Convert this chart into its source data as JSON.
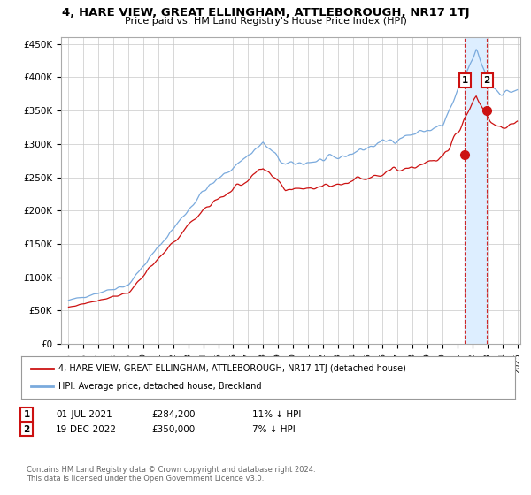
{
  "title": "4, HARE VIEW, GREAT ELLINGHAM, ATTLEBOROUGH, NR17 1TJ",
  "subtitle": "Price paid vs. HM Land Registry's House Price Index (HPI)",
  "legend_line1": "4, HARE VIEW, GREAT ELLINGHAM, ATTLEBOROUGH, NR17 1TJ (detached house)",
  "legend_line2": "HPI: Average price, detached house, Breckland",
  "footer": "Contains HM Land Registry data © Crown copyright and database right 2024.\nThis data is licensed under the Open Government Licence v3.0.",
  "hpi_color": "#7aaadd",
  "price_color": "#cc1111",
  "shade_color": "#ddeeff",
  "sale1": {
    "label": "1",
    "date": "01-JUL-2021",
    "price": 284200,
    "note": "11% ↓ HPI",
    "x_year": 2021.5
  },
  "sale2": {
    "label": "2",
    "date": "19-DEC-2022",
    "price": 350000,
    "note": "7% ↓ HPI",
    "x_year": 2022.96
  },
  "xlim": [
    1994.5,
    2025.2
  ],
  "ylim": [
    0,
    460000
  ],
  "yticks": [
    0,
    50000,
    100000,
    150000,
    200000,
    250000,
    300000,
    350000,
    400000,
    450000
  ],
  "ytick_labels": [
    "£0",
    "£50K",
    "£100K",
    "£150K",
    "£200K",
    "£250K",
    "£300K",
    "£350K",
    "£400K",
    "£450K"
  ],
  "xtick_years": [
    1995,
    1996,
    1997,
    1998,
    1999,
    2000,
    2001,
    2002,
    2003,
    2004,
    2005,
    2006,
    2007,
    2008,
    2009,
    2010,
    2011,
    2012,
    2013,
    2014,
    2015,
    2016,
    2017,
    2018,
    2019,
    2020,
    2021,
    2022,
    2023,
    2024,
    2025
  ]
}
